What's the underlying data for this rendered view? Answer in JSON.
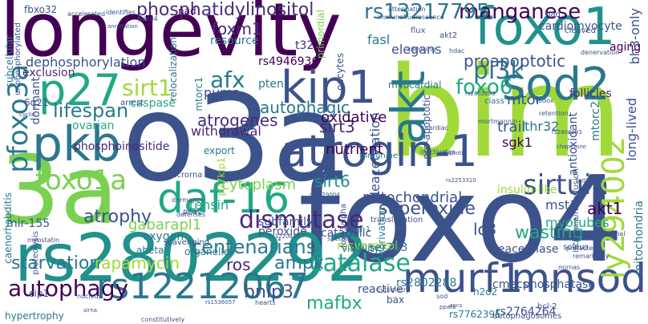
{
  "words": [
    {
      "text": "o3a",
      "color": "#3b528b",
      "vertical": false
    },
    {
      "text": "bim",
      "color": "#a0da39",
      "vertical": false
    },
    {
      "text": "foxo4",
      "color": "#3b528b",
      "vertical": false
    },
    {
      "text": "longevity",
      "color": "#440154",
      "vertical": false
    },
    {
      "text": "3a",
      "color": "#7ad151",
      "vertical": false
    },
    {
      "text": "rs2802292",
      "color": "#21918c",
      "vertical": false
    },
    {
      "text": "foxo1",
      "color": "#21918c",
      "vertical": false
    },
    {
      "text": "akt",
      "color": "#2a788e",
      "vertical": true
    },
    {
      "text": "kip1",
      "color": "#3b528b",
      "vertical": false
    },
    {
      "text": "sod2",
      "color": "#2a788e",
      "vertical": false
    },
    {
      "text": "daf-16",
      "color": "#22a884",
      "vertical": false
    },
    {
      "text": "atrogin-1",
      "color": "#3b528b",
      "vertical": false
    },
    {
      "text": "pkb",
      "color": "#2a788e",
      "vertical": false
    },
    {
      "text": "p27",
      "color": "#22a884",
      "vertical": false
    },
    {
      "text": "murf1",
      "color": "#3b528b",
      "vertical": false
    },
    {
      "text": "mnsod",
      "color": "#3b528b",
      "vertical": false
    },
    {
      "text": "rs12212067",
      "color": "#2a788e",
      "vertical": false
    },
    {
      "text": "pfoxo3a",
      "color": "#2a788e",
      "vertical": true
    },
    {
      "text": "foxo1a",
      "color": "#7ad151",
      "vertical": false
    },
    {
      "text": "dismutase",
      "color": "#482878",
      "vertical": false
    },
    {
      "text": "catalase",
      "color": "#22a884",
      "vertical": false
    },
    {
      "text": "sirtuin",
      "color": "#3b528b",
      "vertical": false
    },
    {
      "text": "ly294002",
      "color": "#a0da39",
      "vertical": true
    },
    {
      "text": "centenarians",
      "color": "#2a788e",
      "vertical": false
    },
    {
      "text": "autophagy",
      "color": "#440154",
      "vertical": false
    },
    {
      "text": "sirt1",
      "color": "#a0da39",
      "vertical": false
    },
    {
      "text": "afx",
      "color": "#2a788e",
      "vertical": false
    },
    {
      "text": "lifespan",
      "color": "#2a788e",
      "vertical": false
    },
    {
      "text": "manganese",
      "color": "#440154",
      "vertical": false
    },
    {
      "text": "rs13217795",
      "color": "#2a788e",
      "vertical": false
    },
    {
      "text": "pi3k",
      "color": "#2a788e",
      "vertical": false
    },
    {
      "text": "foxo6",
      "color": "#22a884",
      "vertical": false
    },
    {
      "text": "phosphatidylinositol",
      "color": "#472d7b",
      "vertical": false
    },
    {
      "text": "superoxide",
      "color": "#3b528b",
      "vertical": false
    },
    {
      "text": "wasting",
      "color": "#22a884",
      "vertical": false
    },
    {
      "text": "starvation",
      "color": "#2a788e",
      "vertical": false
    },
    {
      "text": "rapamycin",
      "color": "#a0da39",
      "vertical": false
    },
    {
      "text": "ampk",
      "color": "#2a788e",
      "vertical": false
    },
    {
      "text": "atrophy",
      "color": "#3b528b",
      "vertical": false
    },
    {
      "text": "proapoptotic",
      "color": "#3b528b",
      "vertical": false
    },
    {
      "text": "bnip3",
      "color": "#3b528b",
      "vertical": false
    },
    {
      "text": "mafbx",
      "color": "#22a884",
      "vertical": false
    },
    {
      "text": "ros",
      "color": "#482878",
      "vertical": false
    },
    {
      "text": "lc3",
      "color": "#3b528b",
      "vertical": false
    },
    {
      "text": "sirt6",
      "color": "#21918c",
      "vertical": false
    },
    {
      "text": "sirt3",
      "color": "#482878",
      "vertical": false
    },
    {
      "text": "deacetylation",
      "color": "#3b528b",
      "vertical": true
    },
    {
      "text": "mitochondrial",
      "color": "#3b528b",
      "vertical": false
    },
    {
      "text": "autophagic",
      "color": "#2a788e",
      "vertical": false
    },
    {
      "text": "atrogenes",
      "color": "#472d7b",
      "vertical": false
    },
    {
      "text": "cytoplasm",
      "color": "#7ad151",
      "vertical": false
    },
    {
      "text": "gabarapl1",
      "color": "#7ad151",
      "vertical": false
    },
    {
      "text": "tensin",
      "color": "#22a884",
      "vertical": false
    },
    {
      "text": "nutrient",
      "color": "#440154",
      "vertical": false
    },
    {
      "text": "oxidative",
      "color": "#440154",
      "vertical": false
    },
    {
      "text": "withdrawal",
      "color": "#482878",
      "vertical": false
    },
    {
      "text": "mtor",
      "color": "#3b528b",
      "vertical": false
    },
    {
      "text": "trail",
      "color": "#3b528b",
      "vertical": false
    },
    {
      "text": "sgk1",
      "color": "#440154",
      "vertical": false
    },
    {
      "text": "thr32",
      "color": "#2a788e",
      "vertical": false
    },
    {
      "text": "mst1",
      "color": "#3b528b",
      "vertical": false
    },
    {
      "text": "akt1",
      "color": "#440154",
      "vertical": false
    },
    {
      "text": "myotubes",
      "color": "#22a884",
      "vertical": false
    },
    {
      "text": "foxm1",
      "color": "#472d7b",
      "vertical": false
    },
    {
      "text": "puma",
      "color": "#3b528b",
      "vertical": false
    },
    {
      "text": "pten",
      "color": "#2a788e",
      "vertical": false
    },
    {
      "text": "fasl",
      "color": "#2a788e",
      "vertical": false
    },
    {
      "text": "elegans",
      "color": "#3b528b",
      "vertical": false
    },
    {
      "text": "cardiomyocyte",
      "color": "#3b528b",
      "vertical": false
    },
    {
      "text": "bh3-only",
      "color": "#3b528b",
      "vertical": true
    },
    {
      "text": "aging",
      "color": "#440154",
      "vertical": false
    },
    {
      "text": "follicles",
      "color": "#482878",
      "vertical": false
    },
    {
      "text": "long-lived",
      "color": "#3b528b",
      "vertical": true
    },
    {
      "text": "mtorc2",
      "color": "#2a788e",
      "vertical": true
    },
    {
      "text": "antioxidant",
      "color": "#3b528b",
      "vertical": true
    },
    {
      "text": "dephosphorylation",
      "color": "#3b528b",
      "vertical": false
    },
    {
      "text": "exclusion",
      "color": "#482878",
      "vertical": false
    },
    {
      "text": "dormant",
      "color": "#3b528b",
      "vertical": true
    },
    {
      "text": "ovarian",
      "color": "#22a884",
      "vertical": false
    },
    {
      "text": "caspase",
      "color": "#22a884",
      "vertical": false
    },
    {
      "text": "phosphoinositide",
      "color": "#482878",
      "vertical": false
    },
    {
      "text": "mir-155",
      "color": "#3b528b",
      "vertical": false
    },
    {
      "text": "resource",
      "color": "#2a788e",
      "vertical": false
    },
    {
      "text": "rs4946936",
      "color": "#440154",
      "vertical": false
    },
    {
      "text": "t32",
      "color": "#482878",
      "vertical": false
    },
    {
      "text": "oocytes",
      "color": "#3b528b",
      "vertical": true
    },
    {
      "text": "relocalization",
      "color": "#2a788e",
      "vertical": true
    },
    {
      "text": "primordial",
      "color": "#7ad151",
      "vertical": true
    },
    {
      "text": "insulin-like",
      "color": "#a0da39",
      "vertical": false
    },
    {
      "text": "nad",
      "color": "#440154",
      "vertical": false
    },
    {
      "text": "fbxo32",
      "color": "#3b528b",
      "vertical": false
    },
    {
      "text": "subcellular",
      "color": "#2a788e",
      "vertical": true
    },
    {
      "text": "unphosphorylated",
      "color": "#3b528b",
      "vertical": true
    },
    {
      "text": "mtorc1",
      "color": "#2a788e",
      "vertical": true
    },
    {
      "text": "6q21",
      "color": "#3b528b",
      "vertical": false
    },
    {
      "text": "pro-apoptotic",
      "color": "#3b528b",
      "vertical": true
    },
    {
      "text": "myocardial",
      "color": "#2a788e",
      "vertical": false
    },
    {
      "text": "oxygen",
      "color": "#2a788e",
      "vertical": false
    },
    {
      "text": "peroxide",
      "color": "#3b528b",
      "vertical": false
    },
    {
      "text": "subfamily",
      "color": "#3b528b",
      "vertical": false
    },
    {
      "text": "catabolic",
      "color": "#3b528b",
      "vertical": false
    },
    {
      "text": "abeta",
      "color": "#2a788e",
      "vertical": false
    },
    {
      "text": "organelles",
      "color": "#2a788e",
      "vertical": false
    },
    {
      "text": "export",
      "color": "#2a788e",
      "vertical": false
    },
    {
      "text": "p27kip1",
      "color": "#a0da39",
      "vertical": true
    },
    {
      "text": "deprivation",
      "color": "#2a788e",
      "vertical": true
    },
    {
      "text": "resveratrol",
      "color": "#a0da39",
      "vertical": false
    },
    {
      "text": "deacetylase",
      "color": "#3b528b",
      "vertical": false
    },
    {
      "text": "mitochondria",
      "color": "#2a788e",
      "vertical": true
    },
    {
      "text": "cmecs",
      "color": "#3b528b",
      "vertical": false
    },
    {
      "text": "phosphatase",
      "color": "#3b528b",
      "vertical": false
    },
    {
      "text": "rs2802288",
      "color": "#2a788e",
      "vertical": false
    },
    {
      "text": "h2o2",
      "color": "#2a788e",
      "vertical": false
    },
    {
      "text": "bax",
      "color": "#3b528b",
      "vertical": false
    },
    {
      "text": "reactive",
      "color": "#3b528b",
      "vertical": false
    },
    {
      "text": "ser253",
      "color": "#2a788e",
      "vertical": false
    },
    {
      "text": "rs7762395",
      "color": "#2a788e",
      "vertical": false
    },
    {
      "text": "rs2764264",
      "color": "#3b528b",
      "vertical": false
    },
    {
      "text": "caenorhabditis",
      "color": "#2a788e",
      "vertical": true
    },
    {
      "text": "proteolysis",
      "color": "#3b528b",
      "vertical": true
    },
    {
      "text": "hypertrophy",
      "color": "#2a788e",
      "vertical": false
    },
    {
      "text": "cip1",
      "color": "#3b528b",
      "vertical": false
    },
    {
      "text": "foxo3alpha",
      "color": "#3b528b",
      "vertical": true
    },
    {
      "text": "igf-1",
      "color": "#2a788e",
      "vertical": false
    },
    {
      "text": "viability",
      "color": "#2a788e",
      "vertical": false
    },
    {
      "text": "translocation",
      "color": "#3b528b",
      "vertical": false
    },
    {
      "text": "akt2",
      "color": "#3b528b",
      "vertical": false
    },
    {
      "text": "flux",
      "color": "#3b528b",
      "vertical": false
    },
    {
      "text": "scavenging",
      "color": "#3b528b",
      "vertical": false
    },
    {
      "text": "threonine",
      "color": "#2a788e",
      "vertical": false
    },
    {
      "text": "ischemia/reperfusion",
      "color": "#3b528b",
      "vertical": true
    },
    {
      "text": "soleus",
      "color": "#3b528b",
      "vertical": false
    },
    {
      "text": "cleaved",
      "color": "#3b528b",
      "vertical": false
    },
    {
      "text": "bad",
      "color": "#3b528b",
      "vertical": false
    },
    {
      "text": "pc12",
      "color": "#3b528b",
      "vertical": false
    },
    {
      "text": "microrna",
      "color": "#3b528b",
      "vertical": false
    },
    {
      "text": "class",
      "color": "#2a788e",
      "vertical": false
    },
    {
      "text": "arrest",
      "color": "#3b528b",
      "vertical": false
    },
    {
      "text": "bcl-2",
      "color": "#3b528b",
      "vertical": false
    },
    {
      "text": "cardiac",
      "color": "#3b528b",
      "vertical": false
    },
    {
      "text": "species",
      "color": "#3b528b",
      "vertical": false
    },
    {
      "text": "nucleus",
      "color": "#3b528b",
      "vertical": false
    },
    {
      "text": "myostatin",
      "color": "#3b528b",
      "vertical": false
    },
    {
      "text": "mirnas",
      "color": "#3b528b",
      "vertical": false
    },
    {
      "text": "protected",
      "color": "#3b528b",
      "vertical": false
    },
    {
      "text": "remarkably",
      "color": "#3b528b",
      "vertical": false
    },
    {
      "text": "attenuation",
      "color": "#3b528b",
      "vertical": false
    },
    {
      "text": "silencing",
      "color": "#3b528b",
      "vertical": false
    },
    {
      "text": "hdac",
      "color": "#3b528b",
      "vertical": false
    },
    {
      "text": "redox",
      "color": "#3b528b",
      "vertical": false
    },
    {
      "text": "autophagosomes",
      "color": "#3b528b",
      "vertical": false
    },
    {
      "text": "cytometry",
      "color": "#3b528b",
      "vertical": false
    },
    {
      "text": "hearts",
      "color": "#3b528b",
      "vertical": false
    },
    {
      "text": "posttranslational",
      "color": "#3b528b",
      "vertical": false
    },
    {
      "text": "follicular",
      "color": "#3b528b",
      "vertical": false
    },
    {
      "text": "dormancy",
      "color": "#3b528b",
      "vertical": false
    },
    {
      "text": "defenses",
      "color": "#3b528b",
      "vertical": false
    },
    {
      "text": "constitutively",
      "color": "#3b528b",
      "vertical": false
    },
    {
      "text": "denervation",
      "color": "#3b528b",
      "vertical": false
    },
    {
      "text": "accelerated",
      "color": "#3b528b",
      "vertical": false
    },
    {
      "text": "identifies",
      "color": "#3b528b",
      "vertical": false
    },
    {
      "text": "pdcd4",
      "color": "#3b528b",
      "vertical": false
    },
    {
      "text": "immunofluorescence",
      "color": "#3b528b",
      "vertical": false
    },
    {
      "text": "inactivates",
      "color": "#3b528b",
      "vertical": false
    },
    {
      "text": "mortmannin",
      "color": "#3b528b",
      "vertical": false
    },
    {
      "text": "retention",
      "color": "#3b528b",
      "vertical": false
    },
    {
      "text": "rs3220810",
      "color": "#3b528b",
      "vertical": false
    },
    {
      "text": "rs2802289",
      "color": "#3b528b",
      "vertical": false
    },
    {
      "text": "rs2253310",
      "color": "#3b528b",
      "vertical": false
    },
    {
      "text": "rs1536057",
      "color": "#3b528b",
      "vertical": false
    },
    {
      "text": "rs2229004",
      "color": "#3b528b",
      "vertical": false
    },
    {
      "text": "rs2802293",
      "color": "#3b528b",
      "vertical": false
    },
    {
      "text": "cyclin",
      "color": "#3b528b",
      "vertical": false
    },
    {
      "text": "sirna",
      "color": "#3b528b",
      "vertical": false
    },
    {
      "text": "annotation",
      "color": "#3b528b",
      "vertical": false
    },
    {
      "text": "apoptotic",
      "color": "#3b528b",
      "vertical": false
    },
    {
      "text": "sod",
      "color": "#3b528b",
      "vertical": false
    },
    {
      "text": "ppara",
      "color": "#3b528b",
      "vertical": false
    },
    {
      "text": "apcs",
      "color": "#3b528b",
      "vertical": false
    },
    {
      "text": "chaperone",
      "color": "#3b528b",
      "vertical": false
    }
  ]
}
